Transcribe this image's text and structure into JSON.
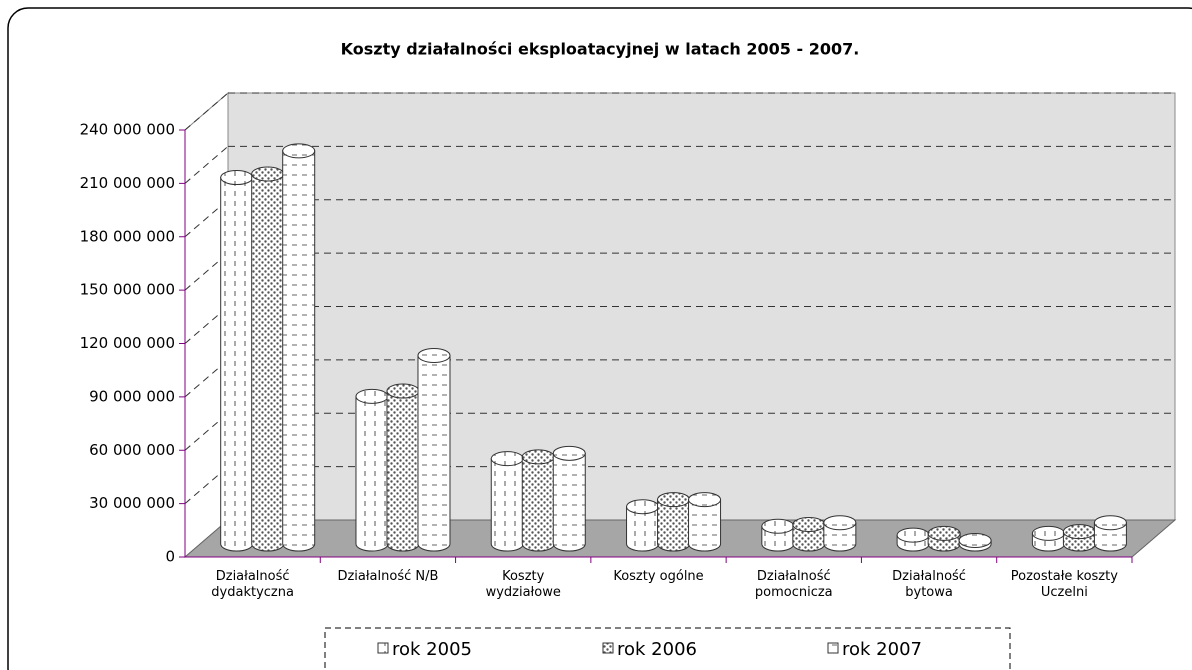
{
  "chart_data": {
    "type": "bar3d",
    "title": "Koszty działalności eksploatacyjnej w latach  2005  -  2007.",
    "categories": [
      "Działalność dydaktyczna",
      "Działalność N/B",
      "Koszty wydziałowe",
      "Koszty ogólne",
      "Działalność pomocnicza",
      "Działalność bytowa",
      "Pozostałe koszty Uczelni"
    ],
    "series": [
      {
        "name": "rok  2005",
        "color": "#ffffff",
        "values": [
          206000000,
          83000000,
          48000000,
          21000000,
          10000000,
          5000000,
          6000000
        ]
      },
      {
        "name": "rok  2006",
        "color": "#ffffff",
        "values": [
          208000000,
          86000000,
          49000000,
          25000000,
          11000000,
          6000000,
          7000000
        ]
      },
      {
        "name": "rok  2007",
        "color": "#ffffff",
        "values": [
          221000000,
          106000000,
          51000000,
          25000000,
          12000000,
          2000000,
          12000000
        ]
      }
    ],
    "ylim": [
      0,
      240000000
    ],
    "yticks": [
      0,
      {
        "value": 30000000,
        "label": "30 000 000"
      },
      {
        "value": 60000000,
        "label": "60 000 000"
      },
      {
        "value": 90000000,
        "label": "90 000 000"
      },
      {
        "value": 120000000,
        "label": "120 000 000"
      },
      {
        "value": 150000000,
        "label": "150 000 000"
      },
      {
        "value": 180000000,
        "label": "180 000 000"
      },
      {
        "value": 210000000,
        "label": "210 000 000"
      },
      {
        "value": 240000000,
        "label": "240 000 000"
      }
    ],
    "grid": true
  }
}
